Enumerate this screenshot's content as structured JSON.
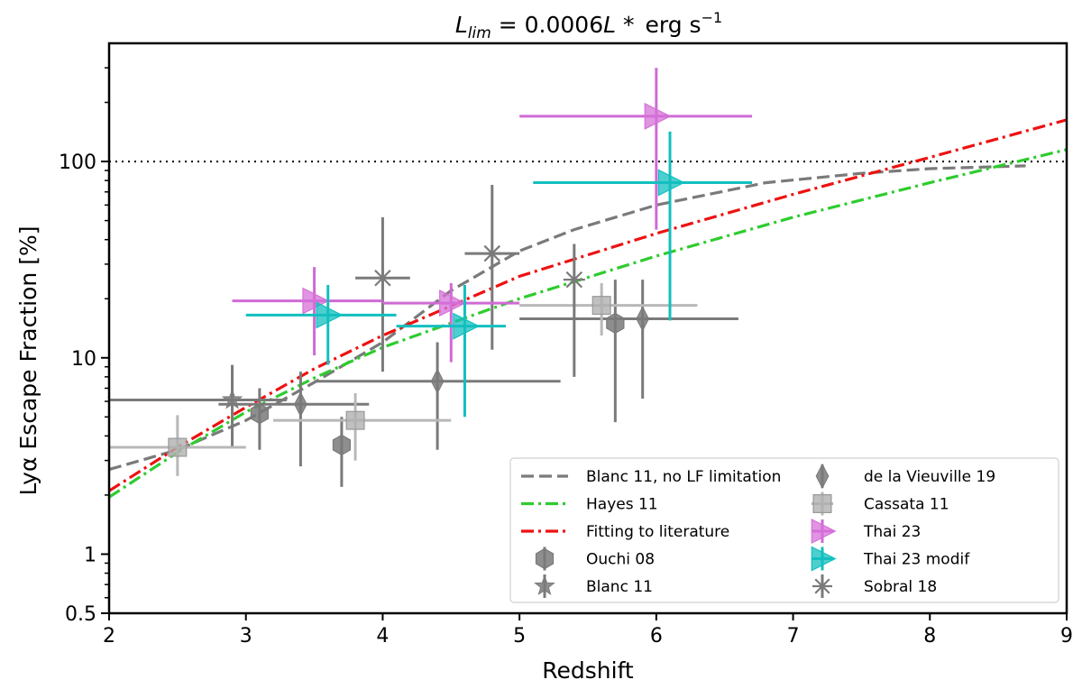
{
  "chart_data": {
    "type": "scatter",
    "title_math": "L",
    "title_sub": "lim",
    "title_mid": " = 0.0006",
    "title_star": "L *",
    "title_units": "erg s",
    "title_exp": "−1",
    "xlabel": "Redshift",
    "ylabel": "Lyα Escape Fraction [%]",
    "xlim": [
      2,
      9
    ],
    "ylim": [
      0.5,
      400
    ],
    "yscale": "log",
    "xticks": [
      2,
      3,
      4,
      5,
      6,
      7,
      8,
      9
    ],
    "xtick_labels": [
      "2",
      "3",
      "4",
      "5",
      "6",
      "7",
      "8",
      "9"
    ],
    "yticks": [
      0.5,
      1,
      10,
      100
    ],
    "ytick_labels": [
      "0.5",
      "1",
      "10",
      "100"
    ],
    "reference_line": 100,
    "legend_position": "lower-right",
    "lines": [
      {
        "name": "Blanc 11, no LF limitation",
        "color": "#7a7a7a",
        "dash": "dashed",
        "x": [
          2.0,
          2.5,
          3.0,
          3.5,
          4.0,
          4.5,
          5.0,
          5.4,
          6.0,
          6.8,
          7.5,
          8.0,
          8.7
        ],
        "y": [
          2.7,
          3.4,
          4.8,
          7.5,
          12,
          22,
          35,
          45,
          60,
          78,
          87,
          92,
          95
        ]
      },
      {
        "name": "Hayes 11",
        "color": "#2ecc2e",
        "dash": "dashdot",
        "x": [
          2.0,
          2.5,
          3.0,
          3.5,
          4.0,
          5.0,
          6.0,
          7.0,
          8.0,
          9.0
        ],
        "y": [
          1.95,
          3.3,
          5.3,
          7.9,
          11.3,
          20,
          33,
          52,
          78,
          115
        ]
      },
      {
        "name": "Fitting to literature",
        "color": "#ee1111",
        "dash": "dashdot",
        "x": [
          2.0,
          2.5,
          3.0,
          3.5,
          4.0,
          5.0,
          6.0,
          7.0,
          8.0,
          9.0
        ],
        "y": [
          2.1,
          3.5,
          5.6,
          8.8,
          13,
          26,
          43,
          68,
          105,
          163
        ]
      }
    ],
    "series": [
      {
        "name": "Ouchi 08",
        "marker": "hexagon",
        "color": "#7a7a7a",
        "ecolor": "#7a7a7a",
        "points": [
          {
            "x": 3.1,
            "y": 5.2,
            "xerr": [
              0,
              0
            ],
            "yerr": [
              3.4,
              7.0
            ]
          },
          {
            "x": 3.7,
            "y": 3.6,
            "xerr": [
              0,
              0
            ],
            "yerr": [
              2.2,
              5.0
            ]
          },
          {
            "x": 5.7,
            "y": 15,
            "xerr": [
              0,
              0
            ],
            "yerr": [
              4.7,
              25
            ]
          }
        ]
      },
      {
        "name": "Blanc 11",
        "marker": "star",
        "color": "#7a7a7a",
        "ecolor": "#7a7a7a",
        "points": [
          {
            "x": 2.9,
            "y": 6.1,
            "xerr": [
              0.9,
              0.4
            ],
            "yerr": [
              3.5,
              9.2
            ]
          }
        ]
      },
      {
        "name": "de la Vieuville 19",
        "marker": "thin_diamond",
        "color": "#7a7a7a",
        "ecolor": "#7a7a7a",
        "points": [
          {
            "x": 3.4,
            "y": 5.8,
            "xerr": [
              0.6,
              0.5
            ],
            "yerr": [
              2.8,
              8.5
            ]
          },
          {
            "x": 4.4,
            "y": 7.6,
            "xerr": [
              0.9,
              0.9
            ],
            "yerr": [
              3.4,
              12
            ]
          },
          {
            "x": 5.9,
            "y": 15.8,
            "xerr": [
              0.9,
              0.7
            ],
            "yerr": [
              6.2,
              25
            ]
          }
        ]
      },
      {
        "name": "Cassata 11",
        "marker": "square",
        "color": "#b0b0b0",
        "ecolor": "#b8b8b8",
        "points": [
          {
            "x": 2.5,
            "y": 3.5,
            "xerr": [
              0.5,
              0.5
            ],
            "yerr": [
              2.5,
              5.1
            ]
          },
          {
            "x": 3.8,
            "y": 4.8,
            "xerr": [
              0.6,
              0.7
            ],
            "yerr": [
              3.0,
              6.6
            ]
          },
          {
            "x": 5.6,
            "y": 18.5,
            "xerr": [
              0.6,
              0.7
            ],
            "yerr": [
              13,
              24
            ]
          }
        ]
      },
      {
        "name": "Sobral 18",
        "marker": "x_star",
        "color": "#7a7a7a",
        "ecolor": "#7a7a7a",
        "points": [
          {
            "x": 4.0,
            "y": 25.5,
            "xerr": [
              0.2,
              0.2
            ],
            "yerr": [
              8.5,
              52
            ]
          },
          {
            "x": 4.8,
            "y": 34,
            "xerr": [
              0.2,
              0.2
            ],
            "yerr": [
              11,
              76
            ]
          },
          {
            "x": 5.4,
            "y": 25,
            "xerr": [
              0,
              0
            ],
            "yerr": [
              8,
              38
            ]
          }
        ]
      },
      {
        "name": "Thai 23",
        "marker": "triangle_right",
        "color": "#d570d8",
        "ecolor": "#d06ad6",
        "points": [
          {
            "x": 3.5,
            "y": 19.5,
            "xerr": [
              0.6,
              0.5
            ],
            "yerr": [
              10.3,
              29
            ]
          },
          {
            "x": 4.5,
            "y": 19,
            "xerr": [
              0.5,
              0.5
            ],
            "yerr": [
              9.5,
              24
            ]
          },
          {
            "x": 6.0,
            "y": 170,
            "xerr": [
              1.0,
              0.7
            ],
            "yerr": [
              45,
              300
            ]
          }
        ]
      },
      {
        "name": "Thai 23 modif",
        "marker": "triangle_right",
        "color": "#13bfbf",
        "ecolor": "#13bfbf",
        "points": [
          {
            "x": 3.6,
            "y": 16.5,
            "xerr": [
              0.6,
              0.5
            ],
            "yerr": [
              9.2,
              23.5
            ]
          },
          {
            "x": 4.6,
            "y": 14.5,
            "xerr": [
              0.5,
              0.3
            ],
            "yerr": [
              5.0,
              23.5
            ]
          },
          {
            "x": 6.1,
            "y": 78,
            "xerr": [
              1.0,
              0.6
            ],
            "yerr": [
              15.5,
              142
            ]
          }
        ]
      }
    ],
    "legend": [
      {
        "label": "Blanc 11, no LF limitation",
        "kind": "line",
        "ref": "Blanc 11, no LF limitation"
      },
      {
        "label": "Hayes 11",
        "kind": "line",
        "ref": "Hayes 11"
      },
      {
        "label": "Fitting to literature",
        "kind": "line",
        "ref": "Fitting to literature"
      },
      {
        "label": "Ouchi 08",
        "kind": "marker",
        "ref": "Ouchi 08"
      },
      {
        "label": "Blanc 11",
        "kind": "marker",
        "ref": "Blanc 11"
      },
      {
        "label": "de la Vieuville 19",
        "kind": "marker",
        "ref": "de la Vieuville 19"
      },
      {
        "label": "Cassata 11",
        "kind": "marker",
        "ref": "Cassata 11"
      },
      {
        "label": "Thai 23",
        "kind": "marker",
        "ref": "Thai 23"
      },
      {
        "label": "Thai 23 modif",
        "kind": "marker",
        "ref": "Thai 23 modif"
      },
      {
        "label": "Sobral 18",
        "kind": "marker",
        "ref": "Sobral 18"
      }
    ]
  }
}
